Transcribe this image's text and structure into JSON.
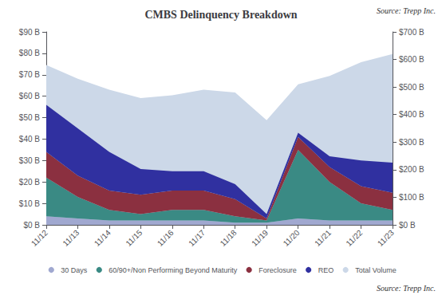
{
  "chart_data": {
    "type": "area",
    "title": "CMBS Delinquency Breakdown",
    "annotations": [
      "Source: Trepp Inc.",
      "Source: Trepp Inc."
    ],
    "categories": [
      "11/12",
      "11/13",
      "11/14",
      "11/15",
      "11/16",
      "11/17",
      "11/18",
      "11/19",
      "11/20",
      "11/21",
      "11/22",
      "11/23"
    ],
    "series": [
      {
        "name": "30 Days",
        "color": "#a0a8d0",
        "values": [
          4,
          3,
          2,
          2,
          2,
          2,
          1,
          1,
          3,
          2,
          2,
          2
        ]
      },
      {
        "name": "60/90+/Non Performing Beyond Maturity",
        "color": "#3a8a84",
        "values": [
          18,
          10,
          5,
          3,
          5,
          5,
          3,
          1,
          32,
          18,
          8,
          5
        ]
      },
      {
        "name": "Foreclosure",
        "color": "#8b3040",
        "values": [
          12,
          10,
          9,
          9,
          9,
          9,
          8,
          1,
          6,
          7,
          8,
          8
        ]
      },
      {
        "name": "REO",
        "color": "#3030a0",
        "values": [
          22,
          22,
          18,
          12,
          9,
          9,
          7,
          2,
          2,
          5,
          12,
          14
        ]
      },
      {
        "name": "Total Volume",
        "color": "#ccd8e8",
        "axis": "y2",
        "values": [
          580,
          530,
          490,
          460,
          470,
          490,
          480,
          380,
          510,
          540,
          590,
          620
        ]
      }
    ],
    "stacked": true,
    "ylim": [
      0,
      90
    ],
    "yticks": [
      {
        "value": 0,
        "label": "$0 B"
      },
      {
        "value": 10,
        "label": "$10 B"
      },
      {
        "value": 20,
        "label": "$20 B"
      },
      {
        "value": 30,
        "label": "$30 B"
      },
      {
        "value": 40,
        "label": "$40 B"
      },
      {
        "value": 50,
        "label": "$50 B"
      },
      {
        "value": 60,
        "label": "$60 B"
      },
      {
        "value": 70,
        "label": "$70 B"
      },
      {
        "value": 80,
        "label": "$80 B"
      },
      {
        "value": 90,
        "label": "$90 B"
      }
    ],
    "y2lim": [
      0,
      700
    ],
    "y2ticks": [
      {
        "value": 0,
        "label": "$0 B"
      },
      {
        "value": 100,
        "label": "$100 B"
      },
      {
        "value": 200,
        "label": "$200 B"
      },
      {
        "value": 300,
        "label": "$300 B"
      },
      {
        "value": 400,
        "label": "$400 B"
      },
      {
        "value": 500,
        "label": "$500 B"
      },
      {
        "value": 600,
        "label": "$600 B"
      },
      {
        "value": 700,
        "label": "$700 B"
      }
    ],
    "grid": false,
    "legend": "bottom"
  }
}
